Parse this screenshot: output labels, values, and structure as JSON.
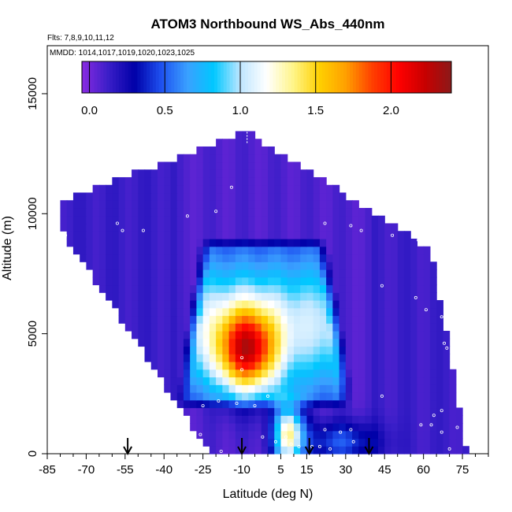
{
  "chart_data": {
    "type": "heatmap",
    "title": "ATOM3 Northbound WS_Abs_440nm",
    "flights_label": "Flts: 7,8,9,10,11,12",
    "mmdd_label": "MMDD: 1014,1017,1019,1020,1023,1025",
    "xlabel": "Latitude (deg N)",
    "ylabel": "Altitude (m)",
    "xlim": [
      -85,
      85
    ],
    "ylim": [
      0,
      17000
    ],
    "x_ticks": [
      -85,
      -70,
      -55,
      -40,
      -25,
      -10,
      5,
      15,
      30,
      45,
      60,
      75
    ],
    "x_tick_labels": [
      "-85",
      "-70",
      "-55",
      "-40",
      "-25",
      "-10",
      "5",
      "15",
      "30",
      "45",
      "60",
      "75"
    ],
    "x_minor_step": 5,
    "y_ticks": [
      0,
      5000,
      10000,
      15000
    ],
    "y_tick_labels": [
      "0",
      "5000",
      "10000",
      "15000"
    ],
    "colorbar": {
      "range": [
        -0.05,
        2.4
      ],
      "tick_values": [
        0.0,
        0.5,
        1.0,
        1.5,
        2.0
      ],
      "tick_labels": [
        "0.0",
        "0.5",
        "1.0",
        "1.5",
        "2.0"
      ],
      "colors": [
        "#8a2be2",
        "#3a1ec8",
        "#0000a8",
        "#1e50f0",
        "#3aa0ff",
        "#00c8ff",
        "#bfe6ff",
        "#ffffff",
        "#fff58a",
        "#ffd000",
        "#ffa000",
        "#ff4000",
        "#ff0000",
        "#c80000",
        "#8b1a1a"
      ]
    },
    "arrows_latitude": [
      -54,
      -10,
      16,
      39
    ],
    "grid": false,
    "legend": "colorbar top"
  }
}
